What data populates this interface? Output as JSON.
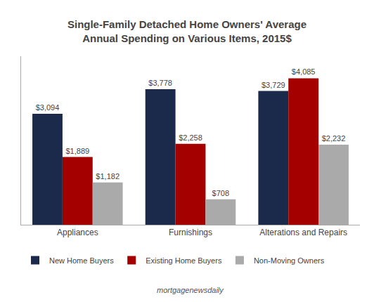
{
  "chart_data": {
    "type": "bar",
    "title": "Single-Family Detached Home Owners' Average\nAnnual Spending on Various Items, 2015$",
    "categories": [
      "Appliances",
      "Furnishings",
      "Alterations and Repairs"
    ],
    "series": [
      {
        "name": "New Home Buyers",
        "color": "#1B2A4A",
        "values": [
          3094,
          3778,
          3729
        ],
        "value_labels": [
          "$3,094",
          "$3,778",
          "$3,729"
        ]
      },
      {
        "name": "Existing Home Buyers",
        "color": "#A50000",
        "values": [
          1889,
          2258,
          4085
        ],
        "value_labels": [
          "$1,889",
          "$2,258",
          "$4,085"
        ]
      },
      {
        "name": "Non-Moving Owners",
        "color": "#AAAAAA",
        "values": [
          1182,
          708,
          2232
        ],
        "value_labels": [
          "$1,182",
          "$708",
          "$2,232"
        ]
      }
    ],
    "ylim": [
      0,
      4700
    ],
    "grid": false,
    "legend": "bottom",
    "data_labels": true,
    "tick_labels": "x",
    "annotations": [
      "mortgagenewsdaily"
    ]
  }
}
